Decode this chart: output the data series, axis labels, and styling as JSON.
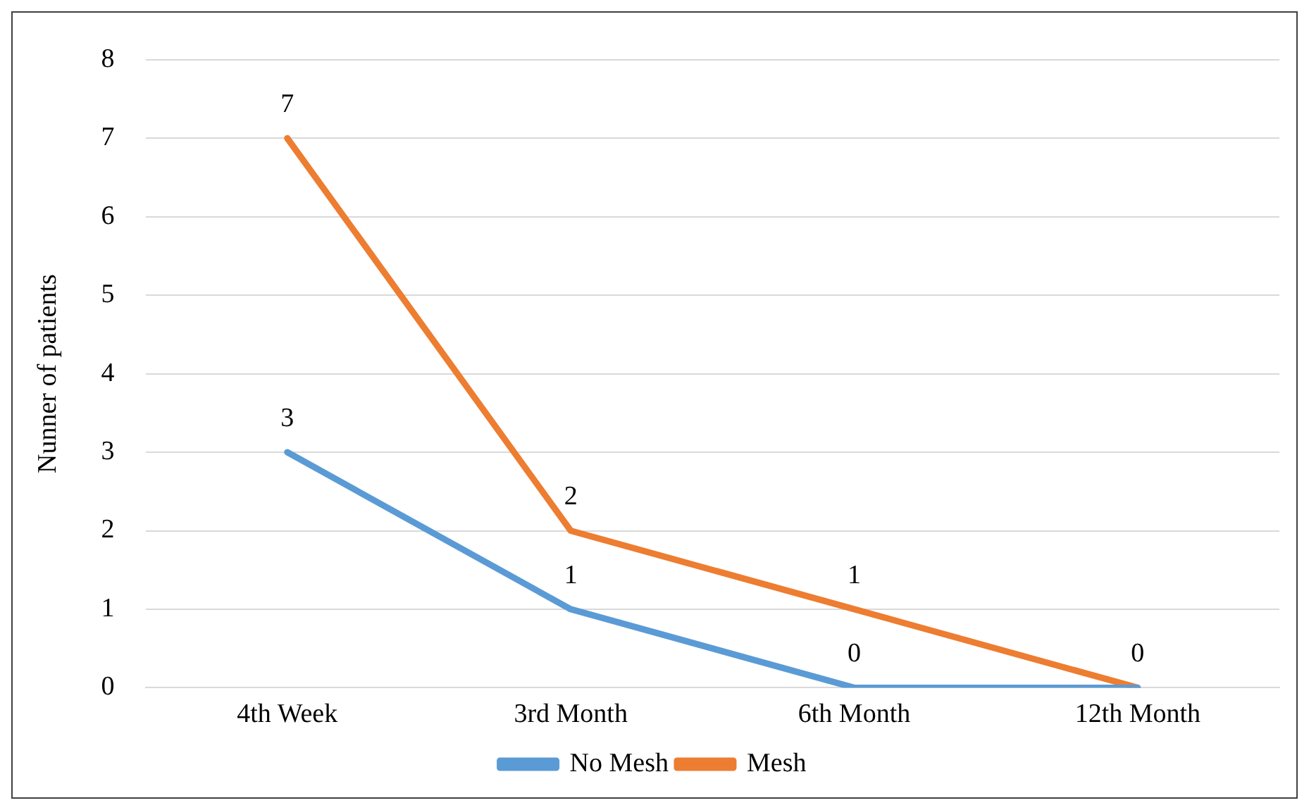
{
  "chart_data": {
    "type": "line",
    "ylabel": "Nunner of patients",
    "categories": [
      "4th Week",
      "3rd Month",
      "6th Month",
      "12th Month"
    ],
    "series": [
      {
        "name": "No Mesh",
        "color": "#5b9bd5",
        "values": [
          3,
          1,
          0,
          0
        ],
        "value_labels": [
          "3",
          "1",
          "0",
          null
        ]
      },
      {
        "name": "Mesh",
        "color": "#ed7d31",
        "values": [
          7,
          2,
          1,
          0
        ],
        "value_labels": [
          "7",
          "2",
          "1",
          "0"
        ]
      }
    ],
    "ylim": [
      0,
      8
    ],
    "yticks": [
      0,
      1,
      2,
      3,
      4,
      5,
      6,
      7,
      8
    ],
    "grid": "y",
    "legend": "bottom",
    "marker": "none",
    "line_style": "solid"
  }
}
